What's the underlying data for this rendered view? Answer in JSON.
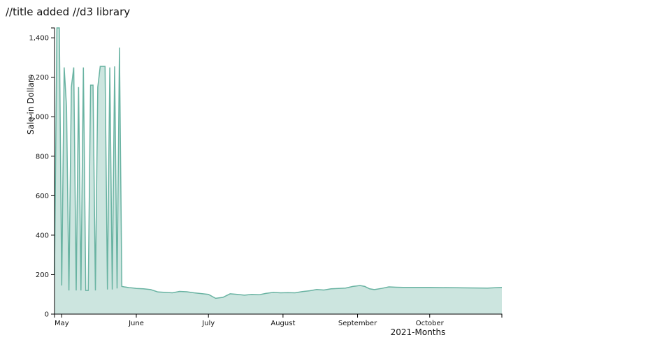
{
  "page": {
    "title": "//title added //d3 library"
  },
  "chart_data": {
    "type": "area",
    "xlabel": "2021-Months",
    "ylabel": "Sale in Dollars",
    "ylim": [
      0,
      1450
    ],
    "yticks": [
      0,
      200,
      400,
      600,
      800,
      1000,
      1200,
      1400
    ],
    "ytick_labels": [
      "0",
      "200",
      "400",
      "600",
      "800",
      "1,000",
      "1,200",
      "1,400"
    ],
    "xlim": [
      "2021-04-28",
      "2021-10-31"
    ],
    "xticks": [
      "2021-05-01",
      "2021-06-01",
      "2021-07-01",
      "2021-08-01",
      "2021-09-01",
      "2021-10-01"
    ],
    "xtick_labels": [
      "May",
      "June",
      "July",
      "August",
      "September",
      "October"
    ],
    "fill_color": "#cce5df",
    "line_color": "#69b3a2",
    "grid": false,
    "x": [
      "2021-04-28",
      "2021-04-29",
      "2021-04-30",
      "2021-05-01",
      "2021-05-02",
      "2021-05-03",
      "2021-05-04",
      "2021-05-05",
      "2021-05-06",
      "2021-05-07",
      "2021-05-08",
      "2021-05-09",
      "2021-05-10",
      "2021-05-11",
      "2021-05-12",
      "2021-05-13",
      "2021-05-14",
      "2021-05-15",
      "2021-05-16",
      "2021-05-17",
      "2021-05-18",
      "2021-05-19",
      "2021-05-20",
      "2021-05-21",
      "2021-05-22",
      "2021-05-23",
      "2021-05-24",
      "2021-05-25",
      "2021-05-26",
      "2021-05-27",
      "2021-05-28",
      "2021-05-29",
      "2021-05-30",
      "2021-05-31",
      "2021-06-01",
      "2021-06-04",
      "2021-06-07",
      "2021-06-10",
      "2021-06-13",
      "2021-06-16",
      "2021-06-19",
      "2021-06-22",
      "2021-06-25",
      "2021-06-28",
      "2021-07-01",
      "2021-07-04",
      "2021-07-07",
      "2021-07-10",
      "2021-07-13",
      "2021-07-16",
      "2021-07-19",
      "2021-07-22",
      "2021-07-25",
      "2021-07-28",
      "2021-07-31",
      "2021-08-03",
      "2021-08-06",
      "2021-08-09",
      "2021-08-12",
      "2021-08-15",
      "2021-08-18",
      "2021-08-21",
      "2021-08-24",
      "2021-08-27",
      "2021-08-30",
      "2021-09-02",
      "2021-09-04",
      "2021-09-06",
      "2021-09-08",
      "2021-09-11",
      "2021-09-14",
      "2021-09-17",
      "2021-09-20",
      "2021-10-01",
      "2021-10-15",
      "2021-10-25",
      "2021-10-31"
    ],
    "values": [
      200,
      1450,
      1450,
      145,
      1250,
      1050,
      120,
      1150,
      1250,
      120,
      1150,
      120,
      1250,
      120,
      120,
      1160,
      1160,
      120,
      1150,
      1255,
      1255,
      1255,
      125,
      1250,
      125,
      1255,
      130,
      1350,
      140,
      138,
      136,
      134,
      133,
      132,
      130,
      128,
      124,
      112,
      110,
      108,
      115,
      113,
      108,
      104,
      100,
      80,
      85,
      103,
      100,
      96,
      100,
      98,
      105,
      110,
      108,
      109,
      108,
      114,
      118,
      125,
      122,
      128,
      130,
      132,
      140,
      145,
      140,
      128,
      124,
      130,
      138,
      136,
      135,
      135,
      133,
      132,
      135
    ]
  }
}
